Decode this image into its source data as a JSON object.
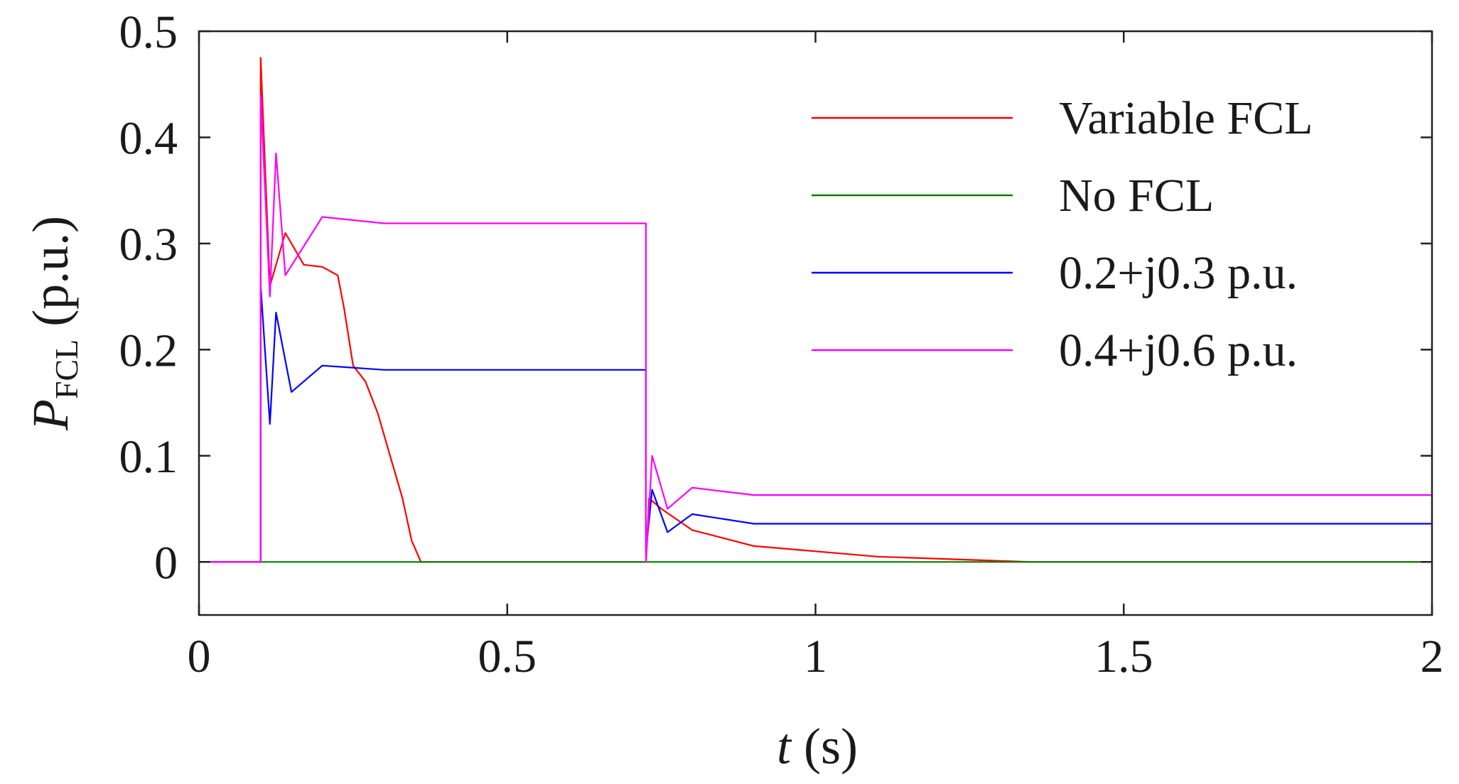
{
  "chart_data": {
    "type": "line",
    "title": "",
    "xlabel": {
      "var": "t",
      "unit": " (s)"
    },
    "ylabel": {
      "var": "P",
      "sub": "FCL",
      "unit": " (p.u.)"
    },
    "xlim": [
      0,
      2
    ],
    "ylim": [
      -0.05,
      0.5
    ],
    "xticks": [
      0,
      0.5,
      1,
      1.5,
      2
    ],
    "xtick_labels": [
      "0",
      "0.5",
      "1",
      "1.5",
      "2"
    ],
    "yticks": [
      0,
      0.1,
      0.2,
      0.3,
      0.4,
      0.5
    ],
    "ytick_labels": [
      "0",
      "0.1",
      "0.2",
      "0.3",
      "0.4",
      "0.5"
    ],
    "grid": false,
    "legend_position": "top-right",
    "fault_start": 0.1,
    "fault_clear": 0.725,
    "series": [
      {
        "name": "Variable FCL",
        "color": "#ff0000",
        "pre_fault": 0,
        "peak": 0.475,
        "plateau": 0.275,
        "post_fault": 0,
        "points": [
          [
            0,
            0
          ],
          [
            0.1,
            0
          ],
          [
            0.1,
            0.475
          ],
          [
            0.115,
            0.26
          ],
          [
            0.14,
            0.31
          ],
          [
            0.17,
            0.28
          ],
          [
            0.2,
            0.278
          ],
          [
            0.225,
            0.27
          ],
          [
            0.235,
            0.24
          ],
          [
            0.25,
            0.185
          ],
          [
            0.27,
            0.17
          ],
          [
            0.29,
            0.14
          ],
          [
            0.31,
            0.1
          ],
          [
            0.33,
            0.06
          ],
          [
            0.345,
            0.02
          ],
          [
            0.36,
            0
          ],
          [
            0.725,
            0
          ],
          [
            0.73,
            0.06
          ],
          [
            0.75,
            0.05
          ],
          [
            0.8,
            0.03
          ],
          [
            0.9,
            0.015
          ],
          [
            1.0,
            0.01
          ],
          [
            1.1,
            0.005
          ],
          [
            1.35,
            0
          ],
          [
            2,
            0
          ]
        ]
      },
      {
        "name": "No FCL",
        "color": "#008000",
        "pre_fault": 0,
        "plateau": 0,
        "post_fault": 0,
        "points": [
          [
            0,
            0
          ],
          [
            2,
            0
          ]
        ]
      },
      {
        "name": "0.2+j0.3 p.u.",
        "color": "#0000ff",
        "pre_fault": 0,
        "peak": 0.26,
        "plateau": 0.181,
        "post_fault": 0.036,
        "points": [
          [
            0,
            0
          ],
          [
            0.1,
            0
          ],
          [
            0.1,
            0.26
          ],
          [
            0.115,
            0.13
          ],
          [
            0.125,
            0.235
          ],
          [
            0.15,
            0.16
          ],
          [
            0.2,
            0.185
          ],
          [
            0.3,
            0.181
          ],
          [
            0.725,
            0.181
          ],
          [
            0.725,
            0.01
          ],
          [
            0.735,
            0.068
          ],
          [
            0.76,
            0.028
          ],
          [
            0.8,
            0.045
          ],
          [
            0.9,
            0.036
          ],
          [
            2,
            0.036
          ]
        ]
      },
      {
        "name": "0.4+j0.6 p.u.",
        "color": "#ff00ff",
        "pre_fault": 0,
        "peak": 0.44,
        "plateau": 0.319,
        "post_fault": 0.063,
        "points": [
          [
            0,
            0
          ],
          [
            0.1,
            0
          ],
          [
            0.1,
            0.44
          ],
          [
            0.115,
            0.25
          ],
          [
            0.125,
            0.385
          ],
          [
            0.14,
            0.27
          ],
          [
            0.2,
            0.325
          ],
          [
            0.3,
            0.319
          ],
          [
            0.725,
            0.319
          ],
          [
            0.725,
            0.0
          ],
          [
            0.735,
            0.1
          ],
          [
            0.76,
            0.05
          ],
          [
            0.8,
            0.07
          ],
          [
            0.9,
            0.063
          ],
          [
            2,
            0.063
          ]
        ]
      }
    ]
  }
}
